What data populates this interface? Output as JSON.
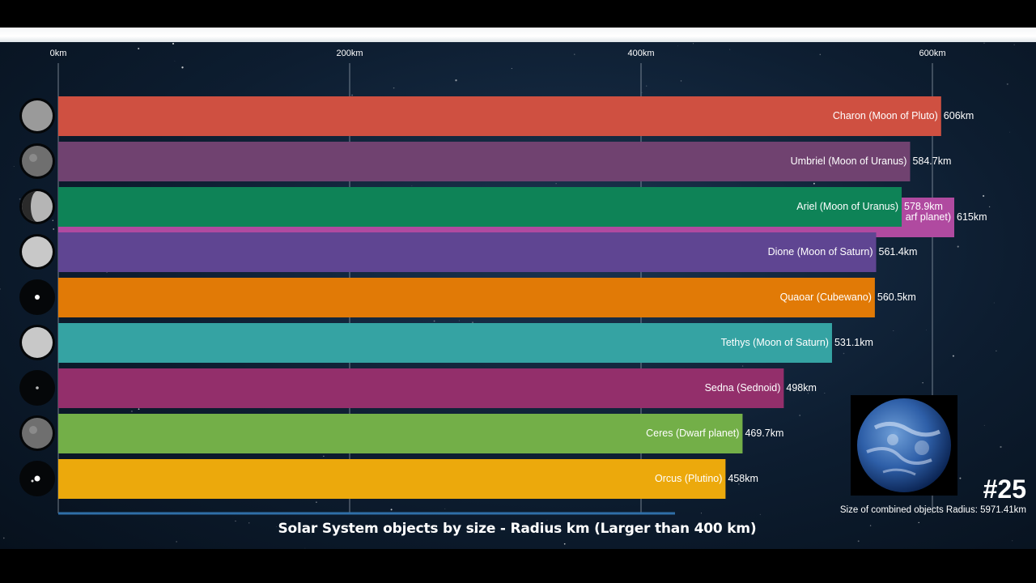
{
  "chart_data": {
    "type": "bar",
    "orientation": "horizontal",
    "title": "Solar System objects by size - Radius km (Larger than 400 km)",
    "x_ticks": [
      "0km",
      "200km",
      "400km",
      "600km"
    ],
    "x_tick_values": [
      0,
      200,
      400,
      600
    ],
    "xlim": [
      0,
      635
    ],
    "grid": true,
    "bars": [
      {
        "label": "Charon (Moon of Pluto)",
        "value": 606,
        "value_label": "606km",
        "color": "#cf5041",
        "moon": "gray"
      },
      {
        "label": "Umbriel (Moon of Uranus)",
        "value": 584.7,
        "value_label": "584.7km",
        "color": "#704270",
        "moon": "gray-dark"
      },
      {
        "label": "Ariel (Moon of Uranus)",
        "value": 578.9,
        "value_label": "578.9km",
        "color": "#0e8357",
        "moon": "half-lit"
      },
      {
        "label": "Dione (Moon of Saturn)",
        "value": 561.4,
        "value_label": "561.4km",
        "color": "#5f4592",
        "moon": "light"
      },
      {
        "label": "Quaoar (Cubewano)",
        "value": 560.5,
        "value_label": "560.5km",
        "color": "#e17a06",
        "moon": "dot"
      },
      {
        "label": "Tethys (Moon of Saturn)",
        "value": 531.1,
        "value_label": "531.1km",
        "color": "#35a3a3",
        "moon": "light"
      },
      {
        "label": "Sedna (Sednoid)",
        "value": 498,
        "value_label": "498km",
        "color": "#932f6b",
        "moon": "faint-dot"
      },
      {
        "label": "Ceres (Dwarf planet)",
        "value": 469.7,
        "value_label": "469.7km",
        "color": "#73af48",
        "moon": "gray-dark"
      },
      {
        "label": "Orcus (Plutino)",
        "value": 458,
        "value_label": "458km",
        "color": "#eca90c",
        "moon": "double-dot"
      }
    ],
    "entering_bar": {
      "label": "arf planet)",
      "value": 615,
      "value_label": "615km",
      "color": "#b04aa0"
    }
  },
  "rank": "#25",
  "combined_label": "Size of combined objects Radius: 5971.41km",
  "earth_icon": "earth-globe"
}
